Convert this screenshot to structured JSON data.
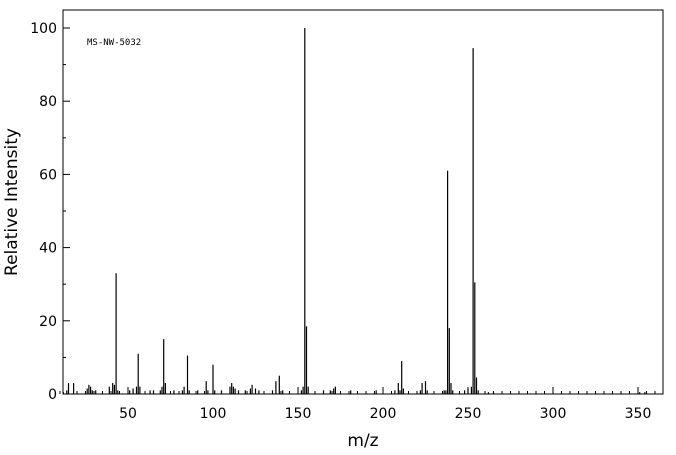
{
  "chart_data": {
    "type": "bar",
    "annotation": "MS-NW-5032",
    "xlabel": "m/z",
    "ylabel": "Relative Intensity",
    "xlim": [
      10,
      362
    ],
    "ylim": [
      0,
      100
    ],
    "x_ticks": [
      50,
      100,
      150,
      200,
      250,
      300,
      350
    ],
    "y_ticks": [
      0,
      20,
      40,
      60,
      80,
      100
    ],
    "grid": false,
    "peaks": [
      {
        "x": 12,
        "y": 0.5
      },
      {
        "x": 14,
        "y": 1.0
      },
      {
        "x": 15,
        "y": 3.0
      },
      {
        "x": 18,
        "y": 3.0
      },
      {
        "x": 26,
        "y": 1.5
      },
      {
        "x": 27,
        "y": 2.5
      },
      {
        "x": 28,
        "y": 2.0
      },
      {
        "x": 29,
        "y": 1.0
      },
      {
        "x": 31,
        "y": 1.0
      },
      {
        "x": 39,
        "y": 2.0
      },
      {
        "x": 41,
        "y": 3.0
      },
      {
        "x": 42,
        "y": 2.5
      },
      {
        "x": 43,
        "y": 33.0
      },
      {
        "x": 44,
        "y": 1.0
      },
      {
        "x": 51,
        "y": 1.0
      },
      {
        "x": 53,
        "y": 1.5
      },
      {
        "x": 55,
        "y": 2.0
      },
      {
        "x": 56,
        "y": 11.0
      },
      {
        "x": 57,
        "y": 2.0
      },
      {
        "x": 63,
        "y": 1.0
      },
      {
        "x": 65,
        "y": 1.0
      },
      {
        "x": 69,
        "y": 1.0
      },
      {
        "x": 70,
        "y": 2.0
      },
      {
        "x": 71,
        "y": 15.0
      },
      {
        "x": 72,
        "y": 3.0
      },
      {
        "x": 77,
        "y": 1.0
      },
      {
        "x": 82,
        "y": 1.0
      },
      {
        "x": 83,
        "y": 2.0
      },
      {
        "x": 85,
        "y": 10.5
      },
      {
        "x": 86,
        "y": 1.0
      },
      {
        "x": 91,
        "y": 1.0
      },
      {
        "x": 96,
        "y": 3.5
      },
      {
        "x": 97,
        "y": 1.0
      },
      {
        "x": 100,
        "y": 8.0
      },
      {
        "x": 101,
        "y": 1.0
      },
      {
        "x": 105,
        "y": 1.0
      },
      {
        "x": 110,
        "y": 2.0
      },
      {
        "x": 111,
        "y": 3.0
      },
      {
        "x": 112,
        "y": 2.0
      },
      {
        "x": 113,
        "y": 1.5
      },
      {
        "x": 115,
        "y": 1.0
      },
      {
        "x": 119,
        "y": 1.0
      },
      {
        "x": 122,
        "y": 1.5
      },
      {
        "x": 123,
        "y": 2.5
      },
      {
        "x": 125,
        "y": 1.5
      },
      {
        "x": 127,
        "y": 1.0
      },
      {
        "x": 135,
        "y": 1.0
      },
      {
        "x": 137,
        "y": 3.5
      },
      {
        "x": 139,
        "y": 5.0
      },
      {
        "x": 141,
        "y": 1.0
      },
      {
        "x": 152,
        "y": 1.0
      },
      {
        "x": 153,
        "y": 2.0
      },
      {
        "x": 154,
        "y": 100.0
      },
      {
        "x": 155,
        "y": 18.5
      },
      {
        "x": 156,
        "y": 2.0
      },
      {
        "x": 165,
        "y": 1.0
      },
      {
        "x": 169,
        "y": 1.0
      },
      {
        "x": 171,
        "y": 1.5
      },
      {
        "x": 172,
        "y": 2.0
      },
      {
        "x": 181,
        "y": 1.0
      },
      {
        "x": 196,
        "y": 1.0
      },
      {
        "x": 207,
        "y": 1.0
      },
      {
        "x": 209,
        "y": 3.0
      },
      {
        "x": 210,
        "y": 1.0
      },
      {
        "x": 211,
        "y": 9.0
      },
      {
        "x": 212,
        "y": 1.5
      },
      {
        "x": 222,
        "y": 1.0
      },
      {
        "x": 223,
        "y": 3.0
      },
      {
        "x": 225,
        "y": 3.5
      },
      {
        "x": 226,
        "y": 1.0
      },
      {
        "x": 236,
        "y": 1.0
      },
      {
        "x": 237,
        "y": 1.0
      },
      {
        "x": 238,
        "y": 61.0
      },
      {
        "x": 239,
        "y": 18.0
      },
      {
        "x": 240,
        "y": 3.0
      },
      {
        "x": 241,
        "y": 1.0
      },
      {
        "x": 248,
        "y": 1.0
      },
      {
        "x": 250,
        "y": 1.5
      },
      {
        "x": 252,
        "y": 2.0
      },
      {
        "x": 253,
        "y": 94.5
      },
      {
        "x": 254,
        "y": 30.5
      },
      {
        "x": 255,
        "y": 4.5
      },
      {
        "x": 256,
        "y": 1.0
      },
      {
        "x": 262,
        "y": 0.5
      },
      {
        "x": 265,
        "y": 0.5
      },
      {
        "x": 351,
        "y": 0.5
      },
      {
        "x": 354,
        "y": 0.5
      }
    ]
  }
}
